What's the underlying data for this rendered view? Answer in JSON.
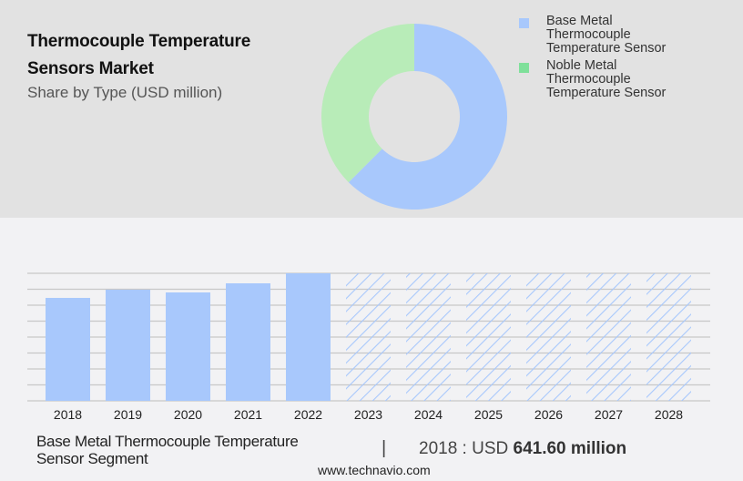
{
  "header": {
    "title_line1": "Thermocouple Temperature",
    "title_line2": "Sensors Market",
    "subtitle": "Share by Type (USD million)"
  },
  "legend": [
    {
      "label_lines": [
        "Base Metal",
        "Thermocouple",
        "Temperature Sensor"
      ],
      "color": "#a8c8fc"
    },
    {
      "label_lines": [
        "Noble Metal",
        "Thermocouple",
        "Temperature Sensor"
      ],
      "color": "#7fe09a"
    }
  ],
  "footer": {
    "segment_line1": "Base Metal Thermocouple Temperature",
    "segment_line2": "Sensor Segment",
    "separator": "|",
    "value_prefix": "2018 : USD",
    "value_bold": "641.60 million",
    "url": "www.technavio.com"
  },
  "colors": {
    "top_bg": "#e2e2e2",
    "bottom_bg": "#f2f2f4",
    "bar": "#a8c8fc",
    "donut_base": "#a8c8fc",
    "donut_noble": "#b8ecb8",
    "grid": "#c8c8c8"
  },
  "chart_data": [
    {
      "type": "pie",
      "title": "Thermocouple Temperature Sensors Market - Share by Type (USD million)",
      "donut": true,
      "categories": [
        "Base Metal Thermocouple Temperature Sensor",
        "Noble Metal Thermocouple Temperature Sensor"
      ],
      "values": [
        62.5,
        37.5
      ],
      "legend_position": "right"
    },
    {
      "type": "bar",
      "title": "Base Metal Thermocouple Temperature Sensor Segment",
      "categories": [
        "2018",
        "2019",
        "2020",
        "2021",
        "2022",
        "2023",
        "2024",
        "2025",
        "2026",
        "2027",
        "2028"
      ],
      "values": [
        641.6,
        692.7,
        675.6,
        732.4,
        794.9,
        null,
        null,
        null,
        null,
        null,
        null
      ],
      "forecast_categories": [
        "2023",
        "2024",
        "2025",
        "2026",
        "2027",
        "2028"
      ],
      "forecast_style": "hatched, full height (values not disclosed)",
      "annotation": "2018 : USD 641.60 million",
      "xlabel": "",
      "ylabel": "USD million",
      "grid": true,
      "gridlines": 9
    }
  ]
}
